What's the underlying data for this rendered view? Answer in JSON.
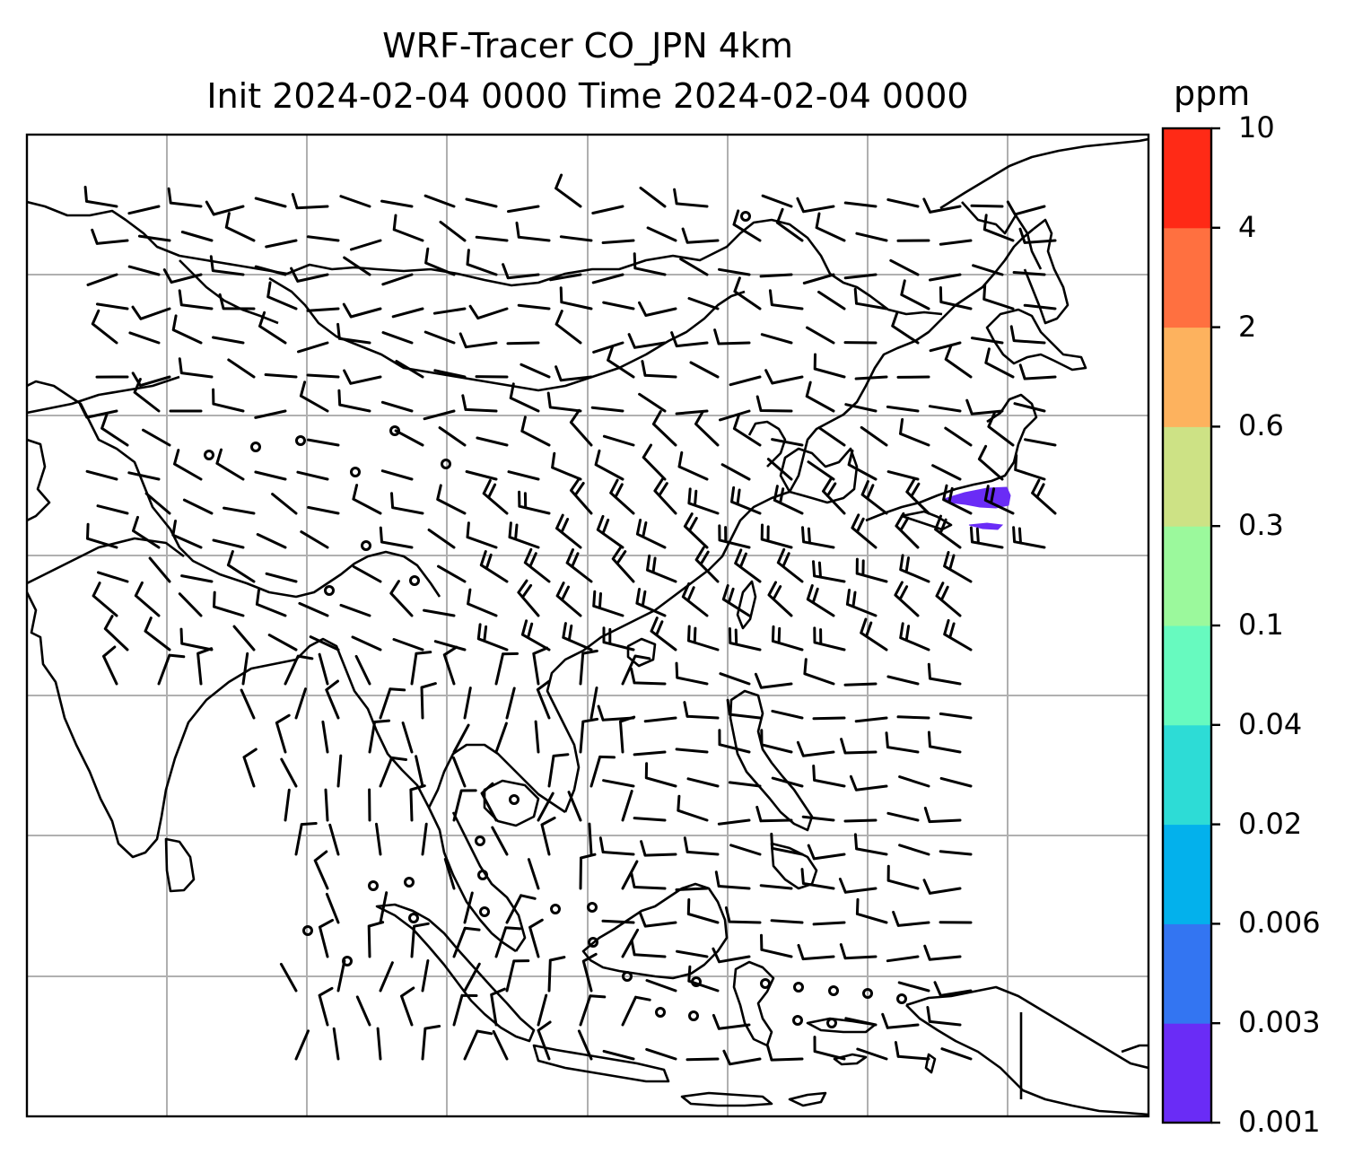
{
  "title": {
    "line1": "WRF-Tracer CO_JPN 4km",
    "line2": "Init 2024-02-04 0000 Time 2024-02-04 0000"
  },
  "colorbar": {
    "unit": "ppm",
    "ticks": [
      "0.001",
      "0.003",
      "0.006",
      "0.02",
      "0.04",
      "0.1",
      "0.3",
      "0.6",
      "2",
      "4",
      "10"
    ],
    "colors": [
      "#6a2cf6",
      "#3375f2",
      "#03b1ec",
      "#2ddcd6",
      "#67fabf",
      "#9bf99c",
      "#cde285",
      "#fdb25e",
      "#ff7040",
      "#ff2a16"
    ]
  },
  "map": {
    "grid": "on",
    "co_plume": {
      "level": "0.001-0.003",
      "color": "#6a2cf6"
    },
    "land_line_color": "#000000",
    "grid_color": "#b0b0b0"
  }
}
